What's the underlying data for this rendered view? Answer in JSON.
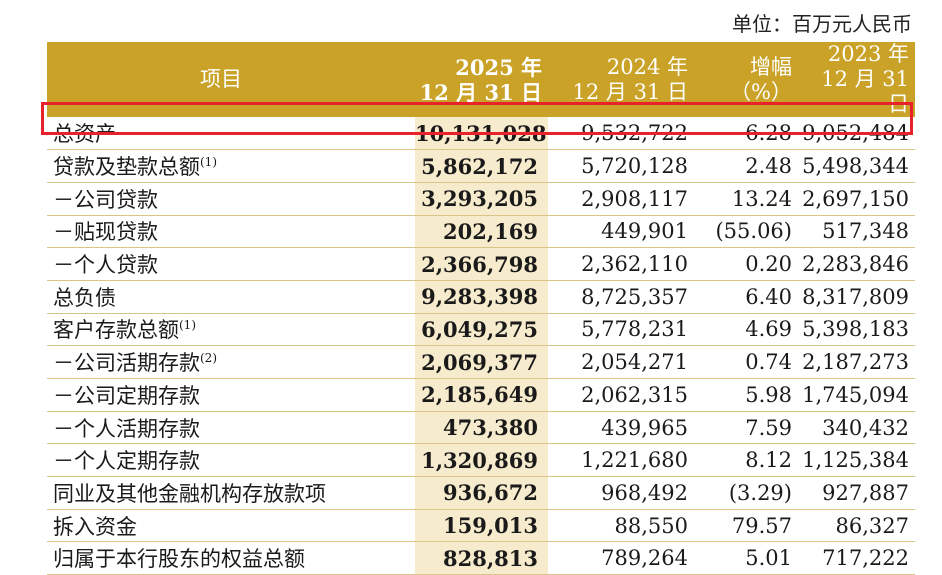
{
  "unit_label": "单位：百万元人民币",
  "header": {
    "item": "项目",
    "col2025": [
      "2025 年",
      "12 月 31 日"
    ],
    "col2024": [
      "2024 年",
      "12 月 31 日"
    ],
    "change": [
      "增幅",
      "（%）"
    ],
    "col2023": [
      "2023 年",
      "12 月 31 日"
    ]
  },
  "rows": [
    {
      "label": "总资产",
      "note": "",
      "v2025": "10,131,028",
      "v2024": "9,532,722",
      "chg": "6.28",
      "v2023": "9,052,484"
    },
    {
      "label": "贷款及垫款总额",
      "note": "(1)",
      "v2025": "5,862,172",
      "v2024": "5,720,128",
      "chg": "2.48",
      "v2023": "5,498,344"
    },
    {
      "label": "－公司贷款",
      "note": "",
      "v2025": "3,293,205",
      "v2024": "2,908,117",
      "chg": "13.24",
      "v2023": "2,697,150"
    },
    {
      "label": "－贴现贷款",
      "note": "",
      "v2025": "202,169",
      "v2024": "449,901",
      "chg": "(55.06)",
      "v2023": "517,348"
    },
    {
      "label": "－个人贷款",
      "note": "",
      "v2025": "2,366,798",
      "v2024": "2,362,110",
      "chg": "0.20",
      "v2023": "2,283,846"
    },
    {
      "label": "总负债",
      "note": "",
      "v2025": "9,283,398",
      "v2024": "8,725,357",
      "chg": "6.40",
      "v2023": "8,317,809"
    },
    {
      "label": "客户存款总额",
      "note": "(1)",
      "v2025": "6,049,275",
      "v2024": "5,778,231",
      "chg": "4.69",
      "v2023": "5,398,183"
    },
    {
      "label": "－公司活期存款",
      "note": "(2)",
      "v2025": "2,069,377",
      "v2024": "2,054,271",
      "chg": "0.74",
      "v2023": "2,187,273"
    },
    {
      "label": "－公司定期存款",
      "note": "",
      "v2025": "2,185,649",
      "v2024": "2,062,315",
      "chg": "5.98",
      "v2023": "1,745,094"
    },
    {
      "label": "－个人活期存款",
      "note": "",
      "v2025": "473,380",
      "v2024": "439,965",
      "chg": "7.59",
      "v2023": "340,432"
    },
    {
      "label": "－个人定期存款",
      "note": "",
      "v2025": "1,320,869",
      "v2024": "1,221,680",
      "chg": "8.12",
      "v2023": "1,125,384"
    },
    {
      "label": "同业及其他金融机构存放款项",
      "note": "",
      "v2025": "936,672",
      "v2024": "968,492",
      "chg": "(3.29)",
      "v2023": "927,887"
    },
    {
      "label": "拆入资金",
      "note": "",
      "v2025": "159,013",
      "v2024": "88,550",
      "chg": "79.57",
      "v2023": "86,327"
    },
    {
      "label": "归属于本行股东的权益总额",
      "note": "",
      "v2025": "828,813",
      "v2024": "789,264",
      "chg": "5.01",
      "v2023": "717,222"
    }
  ],
  "colors": {
    "header_bg": "#c9a227",
    "highlight_col_bg": "#f6ebcc",
    "highlight_box": "#e8222b"
  }
}
